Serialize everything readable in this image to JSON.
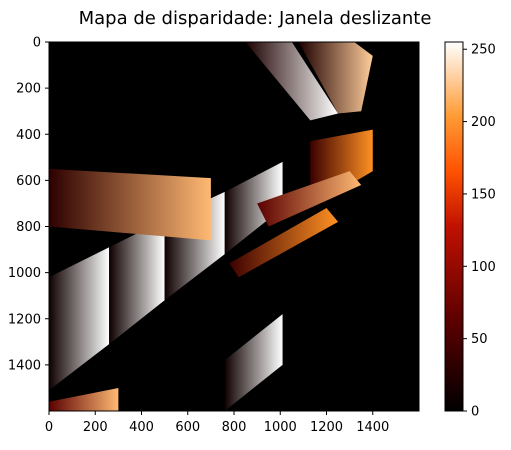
{
  "chart_data": {
    "type": "heatmap",
    "title": "Mapa de disparidade: Janela deslizante",
    "xlabel": "",
    "ylabel": "",
    "xlim": [
      0,
      1600
    ],
    "ylim": [
      1600,
      0
    ],
    "x_ticks": [
      "0",
      "200",
      "400",
      "600",
      "800",
      "1000",
      "1200",
      "1400"
    ],
    "y_ticks": [
      "0",
      "200",
      "400",
      "600",
      "800",
      "1000",
      "1200",
      "1400"
    ],
    "x_tick_values": [
      0,
      200,
      400,
      600,
      800,
      1000,
      1200,
      1400
    ],
    "y_tick_values": [
      0,
      200,
      400,
      600,
      800,
      1000,
      1200,
      1400
    ],
    "colorbar": {
      "colormap": "gist_heat",
      "range": [
        0,
        255
      ],
      "ticks": [
        "0",
        "50",
        "100",
        "150",
        "200",
        "250"
      ],
      "tick_values": [
        0,
        50,
        100,
        150,
        200,
        250
      ]
    },
    "background_value": 0,
    "regions": [
      {
        "id": "upper-band-1",
        "polygon": [
          [
            850,
            0
          ],
          [
            1050,
            0
          ],
          [
            1250,
            310
          ],
          [
            1130,
            340
          ]
        ],
        "min": 20,
        "max": 255
      },
      {
        "id": "upper-band-2",
        "polygon": [
          [
            1080,
            0
          ],
          [
            1320,
            0
          ],
          [
            1400,
            60
          ],
          [
            1350,
            300
          ],
          [
            1250,
            310
          ]
        ],
        "min": 20,
        "max": 230
      },
      {
        "id": "left-band",
        "polygon": [
          [
            0,
            1020
          ],
          [
            260,
            890
          ],
          [
            260,
            1310
          ],
          [
            0,
            1510
          ]
        ],
        "min": 10,
        "max": 255
      },
      {
        "id": "mid-band-1",
        "polygon": [
          [
            260,
            890
          ],
          [
            500,
            770
          ],
          [
            500,
            1120
          ],
          [
            260,
            1310
          ]
        ],
        "min": 10,
        "max": 255
      },
      {
        "id": "mid-band-2",
        "polygon": [
          [
            500,
            770
          ],
          [
            760,
            650
          ],
          [
            760,
            920
          ],
          [
            500,
            1120
          ]
        ],
        "min": 10,
        "max": 255
      },
      {
        "id": "mid-band-3",
        "polygon": [
          [
            760,
            650
          ],
          [
            1010,
            520
          ],
          [
            1010,
            720
          ],
          [
            760,
            920
          ]
        ],
        "min": 10,
        "max": 255
      },
      {
        "id": "right-band",
        "polygon": [
          [
            1130,
            430
          ],
          [
            1400,
            380
          ],
          [
            1400,
            560
          ],
          [
            1130,
            720
          ]
        ],
        "min": 40,
        "max": 200
      },
      {
        "id": "lower-band",
        "polygon": [
          [
            760,
            1380
          ],
          [
            1010,
            1180
          ],
          [
            1010,
            1400
          ],
          [
            760,
            1600
          ]
        ],
        "min": 10,
        "max": 255
      },
      {
        "id": "diag-1",
        "polygon": [
          [
            900,
            700
          ],
          [
            1300,
            560
          ],
          [
            1350,
            620
          ],
          [
            950,
            800
          ]
        ],
        "min": 60,
        "max": 220
      },
      {
        "id": "diag-2",
        "polygon": [
          [
            780,
            960
          ],
          [
            1200,
            720
          ],
          [
            1250,
            780
          ],
          [
            820,
            1020
          ]
        ],
        "min": 40,
        "max": 200
      },
      {
        "id": "noise-left",
        "polygon": [
          [
            0,
            550
          ],
          [
            700,
            590
          ],
          [
            700,
            860
          ],
          [
            0,
            800
          ]
        ],
        "min": 30,
        "max": 220
      },
      {
        "id": "bottom-strip",
        "polygon": [
          [
            0,
            1560
          ],
          [
            300,
            1500
          ],
          [
            300,
            1600
          ],
          [
            0,
            1600
          ]
        ],
        "min": 60,
        "max": 220
      }
    ]
  }
}
